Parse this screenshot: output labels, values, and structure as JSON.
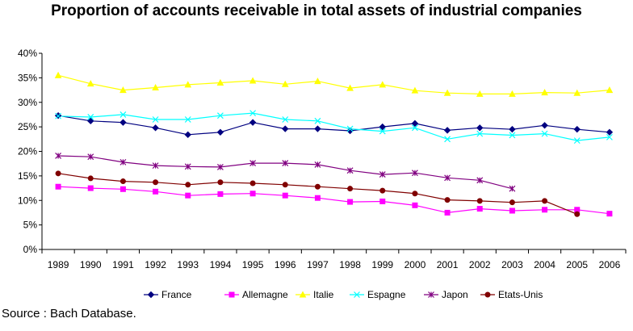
{
  "chart_data": {
    "type": "line",
    "title": "Proportion of accounts receivable in total assets of industrial companies",
    "x": [
      "1989",
      "1990",
      "1991",
      "1992",
      "1993",
      "1994",
      "1995",
      "1996",
      "1997",
      "1998",
      "1999",
      "2000",
      "2001",
      "2002",
      "2003",
      "2004",
      "2005",
      "2006"
    ],
    "y_ticks": [
      "0%",
      "5%",
      "10%",
      "15%",
      "20%",
      "25%",
      "30%",
      "35%",
      "40%"
    ],
    "ylim": [
      0,
      40
    ],
    "y_unit": "%",
    "grid": false,
    "legend_position": "bottom",
    "series": [
      {
        "name": "France",
        "color": "#000080",
        "marker": "diamond",
        "values": [
          27.3,
          26.2,
          25.9,
          24.8,
          23.4,
          23.9,
          25.9,
          24.6,
          24.6,
          24.2,
          25.0,
          25.7,
          24.3,
          24.8,
          24.5,
          25.3,
          24.5,
          23.9
        ]
      },
      {
        "name": "Allemagne",
        "color": "#ff00ff",
        "marker": "square",
        "values": [
          12.8,
          12.5,
          12.3,
          11.8,
          11.0,
          11.3,
          11.4,
          11.0,
          10.5,
          9.7,
          9.8,
          9.0,
          7.5,
          8.3,
          7.9,
          8.1,
          8.1,
          7.3
        ]
      },
      {
        "name": "Italie",
        "color": "#ffff00",
        "marker": "triangle",
        "values": [
          35.5,
          33.8,
          32.5,
          33.0,
          33.6,
          34.0,
          34.4,
          33.7,
          34.3,
          32.9,
          33.6,
          32.4,
          31.9,
          31.7,
          31.7,
          32.0,
          31.9,
          32.5
        ]
      },
      {
        "name": "Espagne",
        "color": "#00ffff",
        "marker": "x",
        "values": [
          27.2,
          27.0,
          27.5,
          26.5,
          26.5,
          27.3,
          27.8,
          26.5,
          26.2,
          24.6,
          24.1,
          24.8,
          22.5,
          23.6,
          23.3,
          23.6,
          22.2,
          22.9
        ]
      },
      {
        "name": "Japon",
        "color": "#800080",
        "marker": "star",
        "values": [
          19.1,
          18.9,
          17.8,
          17.1,
          16.9,
          16.8,
          17.6,
          17.6,
          17.3,
          16.1,
          15.3,
          15.6,
          14.6,
          14.1,
          12.4,
          null,
          null,
          null
        ]
      },
      {
        "name": "Etats-Unis",
        "color": "#800000",
        "marker": "circle",
        "values": [
          15.5,
          14.5,
          13.9,
          13.7,
          13.2,
          13.7,
          13.5,
          13.2,
          12.8,
          12.4,
          12.0,
          11.4,
          10.1,
          9.9,
          9.6,
          9.9,
          7.2,
          null
        ]
      }
    ]
  },
  "source_text": "Source : Bach Database."
}
